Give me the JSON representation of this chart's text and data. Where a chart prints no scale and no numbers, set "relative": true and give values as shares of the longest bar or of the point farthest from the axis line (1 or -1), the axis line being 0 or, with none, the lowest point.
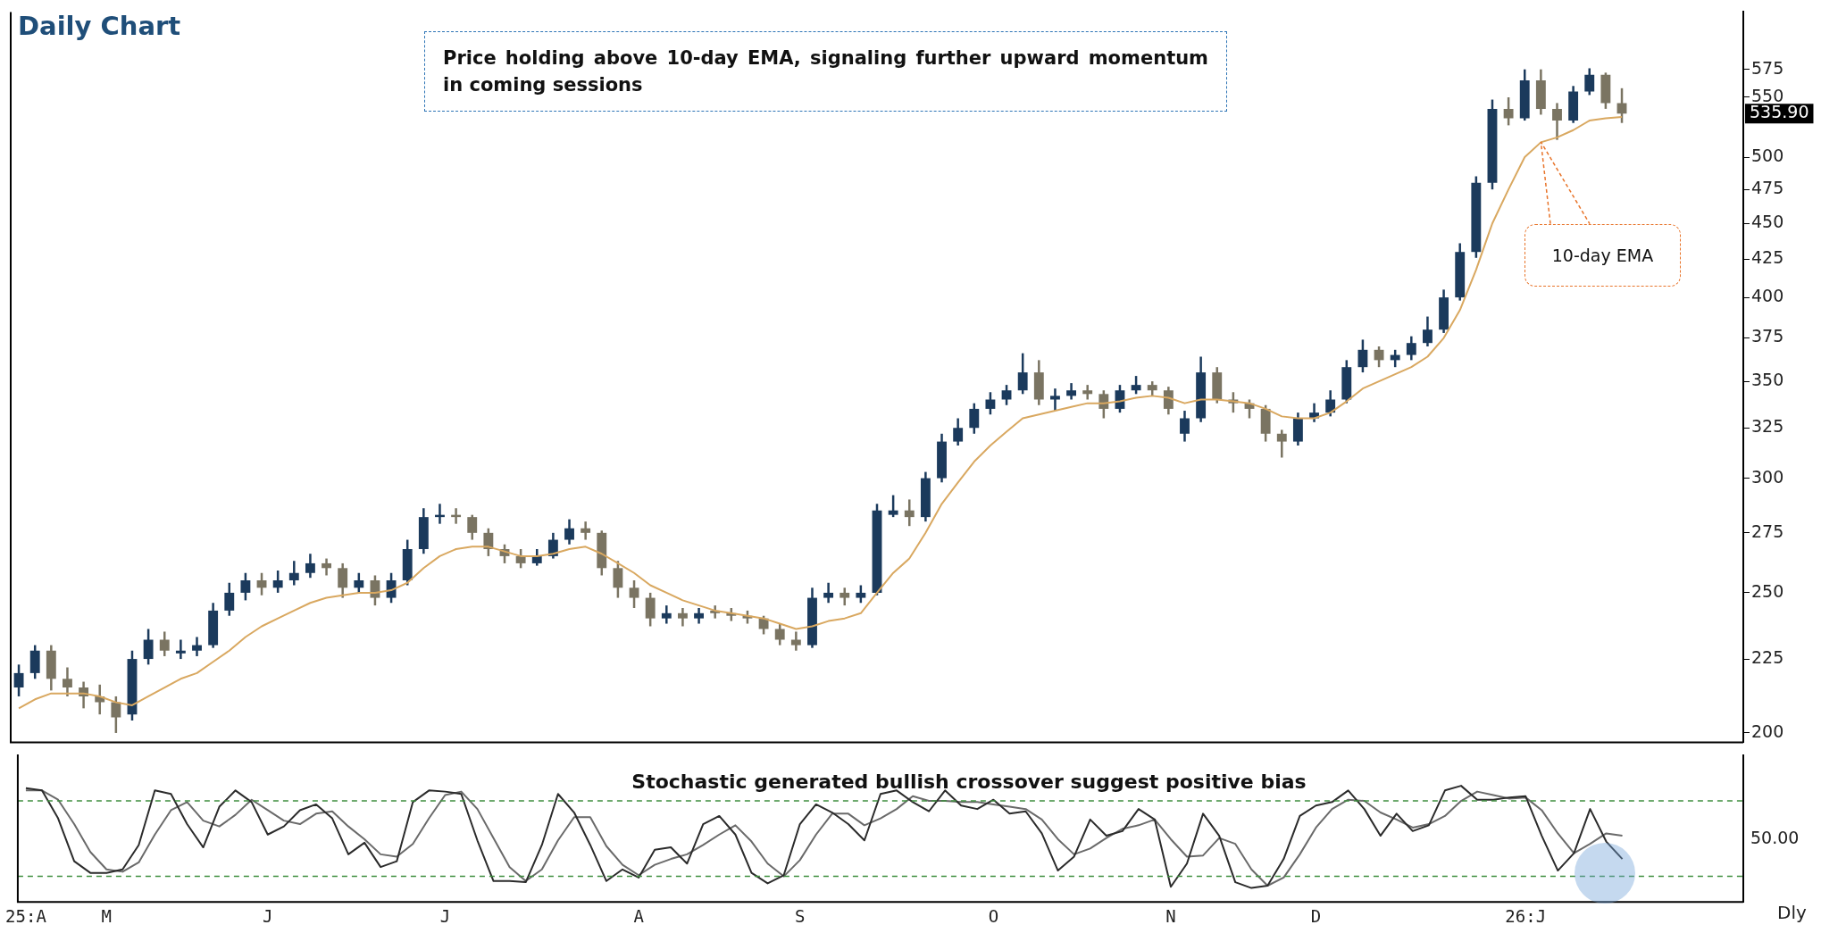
{
  "chart_data": [
    {
      "type": "candlestick",
      "title": "Daily Chart",
      "log": "y",
      "tick_labels": "y",
      "ylim": [
        197,
        630
      ],
      "yticks": [
        200,
        225,
        250,
        275,
        300,
        325,
        350,
        375,
        400,
        425,
        450,
        475,
        500,
        550,
        575
      ],
      "categories": [
        null,
        null,
        null,
        null,
        null,
        null,
        null,
        null,
        null,
        null,
        null,
        null,
        null,
        null,
        null,
        null,
        null,
        null,
        null,
        null,
        null,
        null,
        null,
        null,
        null,
        null,
        null,
        null,
        null,
        null,
        null,
        null,
        null,
        null,
        null,
        null,
        null,
        null,
        null,
        null,
        null,
        null,
        null,
        null,
        null,
        null,
        null,
        null,
        null,
        null,
        null,
        null,
        null,
        null,
        null,
        null,
        null,
        null,
        null,
        null,
        null,
        null,
        null,
        null,
        null,
        null,
        null,
        null,
        null,
        null,
        null,
        null,
        null,
        null,
        null,
        null,
        null,
        null,
        null,
        null,
        null,
        null,
        null,
        null,
        null,
        null,
        null,
        null,
        null,
        null,
        null,
        null,
        null,
        null,
        null,
        null,
        null,
        null,
        null,
        null
      ],
      "ohlc": [
        [
          215,
          223,
          212,
          220
        ],
        [
          220,
          230,
          218,
          228
        ],
        [
          228,
          230,
          214,
          218
        ],
        [
          218,
          222,
          212,
          215
        ],
        [
          215,
          217,
          208,
          212
        ],
        [
          212,
          216,
          206,
          210
        ],
        [
          210,
          212,
          200,
          205
        ],
        [
          206,
          228,
          204,
          225
        ],
        [
          225,
          236,
          223,
          232
        ],
        [
          232,
          235,
          226,
          228
        ],
        [
          227,
          232,
          225,
          228
        ],
        [
          228,
          233,
          226,
          230
        ],
        [
          230,
          246,
          229,
          243
        ],
        [
          243,
          254,
          241,
          250
        ],
        [
          250,
          258,
          247,
          255
        ],
        [
          255,
          258,
          249,
          252
        ],
        [
          252,
          259,
          250,
          255
        ],
        [
          255,
          263,
          253,
          258
        ],
        [
          258,
          266,
          256,
          262
        ],
        [
          262,
          264,
          257,
          260
        ],
        [
          260,
          262,
          248,
          252
        ],
        [
          252,
          258,
          250,
          255
        ],
        [
          255,
          257,
          245,
          248
        ],
        [
          248,
          258,
          246,
          255
        ],
        [
          255,
          272,
          253,
          268
        ],
        [
          268,
          286,
          266,
          282
        ],
        [
          282,
          288,
          279,
          283
        ],
        [
          283,
          286,
          279,
          282
        ],
        [
          282,
          283,
          272,
          275
        ],
        [
          275,
          277,
          265,
          268
        ],
        [
          268,
          270,
          262,
          265
        ],
        [
          265,
          268,
          260,
          262
        ],
        [
          262,
          268,
          261,
          265
        ],
        [
          265,
          275,
          264,
          272
        ],
        [
          272,
          281,
          270,
          277
        ],
        [
          277,
          280,
          272,
          275
        ],
        [
          275,
          276,
          257,
          260
        ],
        [
          260,
          263,
          248,
          252
        ],
        [
          252,
          255,
          244,
          248
        ],
        [
          248,
          250,
          237,
          240
        ],
        [
          240,
          245,
          238,
          242
        ],
        [
          242,
          244,
          237,
          240
        ],
        [
          240,
          244,
          238,
          242
        ],
        [
          243,
          245,
          240,
          242
        ],
        [
          242,
          244,
          239,
          241
        ],
        [
          241,
          243,
          238,
          240
        ],
        [
          240,
          241,
          234,
          236
        ],
        [
          236,
          238,
          230,
          232
        ],
        [
          232,
          235,
          228,
          230
        ],
        [
          230,
          252,
          229,
          248
        ],
        [
          248,
          254,
          246,
          250
        ],
        [
          250,
          252,
          245,
          248
        ],
        [
          248,
          253,
          246,
          250
        ],
        [
          250,
          288,
          249,
          285
        ],
        [
          283,
          292,
          282,
          285
        ],
        [
          285,
          290,
          278,
          282
        ],
        [
          282,
          303,
          280,
          300
        ],
        [
          300,
          322,
          298,
          318
        ],
        [
          318,
          330,
          316,
          325
        ],
        [
          325,
          338,
          322,
          335
        ],
        [
          335,
          344,
          332,
          340
        ],
        [
          340,
          348,
          337,
          345
        ],
        [
          345,
          366,
          343,
          355
        ],
        [
          355,
          362,
          337,
          340
        ],
        [
          340,
          346,
          334,
          342
        ],
        [
          342,
          349,
          340,
          345
        ],
        [
          345,
          348,
          340,
          343
        ],
        [
          343,
          345,
          330,
          335
        ],
        [
          335,
          348,
          333,
          345
        ],
        [
          345,
          353,
          343,
          348
        ],
        [
          348,
          350,
          342,
          345
        ],
        [
          345,
          347,
          332,
          335
        ],
        [
          322,
          334,
          318,
          330
        ],
        [
          330,
          364,
          328,
          355
        ],
        [
          355,
          358,
          338,
          340
        ],
        [
          340,
          344,
          333,
          338
        ],
        [
          338,
          340,
          330,
          335
        ],
        [
          335,
          337,
          318,
          322
        ],
        [
          322,
          324,
          310,
          318
        ],
        [
          318,
          333,
          316,
          330
        ],
        [
          330,
          338,
          328,
          333
        ],
        [
          333,
          345,
          331,
          340
        ],
        [
          340,
          362,
          338,
          358
        ],
        [
          358,
          374,
          355,
          368
        ],
        [
          368,
          370,
          358,
          362
        ],
        [
          362,
          368,
          358,
          365
        ],
        [
          365,
          376,
          362,
          372
        ],
        [
          372,
          388,
          370,
          380
        ],
        [
          380,
          405,
          378,
          400
        ],
        [
          400,
          436,
          398,
          430
        ],
        [
          430,
          485,
          426,
          480
        ],
        [
          480,
          548,
          475,
          540
        ],
        [
          540,
          550,
          526,
          532
        ],
        [
          532,
          575,
          530,
          565
        ],
        [
          565,
          575,
          535,
          540
        ],
        [
          540,
          545,
          514,
          530
        ],
        [
          530,
          560,
          528,
          555
        ],
        [
          555,
          576,
          552,
          570
        ],
        [
          570,
          572,
          540,
          545
        ],
        [
          545,
          558,
          528,
          535.9
        ]
      ],
      "colors": [
        "#1b3a5c",
        "#1b3a5c",
        "#7a7462",
        "#7a7462",
        "#7a7462",
        "#7a7462",
        "#7a7462",
        "#1b3a5c",
        "#1b3a5c",
        "#7a7462",
        "#1b3a5c",
        "#1b3a5c",
        "#1b3a5c",
        "#1b3a5c",
        "#1b3a5c",
        "#7a7462",
        "#1b3a5c",
        "#1b3a5c",
        "#1b3a5c",
        "#7a7462",
        "#7a7462",
        "#1b3a5c",
        "#7a7462",
        "#1b3a5c",
        "#1b3a5c",
        "#1b3a5c",
        "#1b3a5c",
        "#7a7462",
        "#7a7462",
        "#7a7462",
        "#7a7462",
        "#7a7462",
        "#1b3a5c",
        "#1b3a5c",
        "#1b3a5c",
        "#7a7462",
        "#7a7462",
        "#7a7462",
        "#7a7462",
        "#7a7462",
        "#1b3a5c",
        "#7a7462",
        "#1b3a5c",
        "#7a7462",
        "#7a7462",
        "#7a7462",
        "#7a7462",
        "#7a7462",
        "#7a7462",
        "#1b3a5c",
        "#1b3a5c",
        "#7a7462",
        "#1b3a5c",
        "#1b3a5c",
        "#1b3a5c",
        "#7a7462",
        "#1b3a5c",
        "#1b3a5c",
        "#1b3a5c",
        "#1b3a5c",
        "#1b3a5c",
        "#1b3a5c",
        "#1b3a5c",
        "#7a7462",
        "#1b3a5c",
        "#1b3a5c",
        "#7a7462",
        "#7a7462",
        "#1b3a5c",
        "#1b3a5c",
        "#7a7462",
        "#7a7462",
        "#1b3a5c",
        "#1b3a5c",
        "#7a7462",
        "#7a7462",
        "#7a7462",
        "#7a7462",
        "#7a7462",
        "#1b3a5c",
        "#1b3a5c",
        "#1b3a5c",
        "#1b3a5c",
        "#1b3a5c",
        "#7a7462",
        "#1b3a5c",
        "#1b3a5c",
        "#1b3a5c",
        "#1b3a5c",
        "#1b3a5c",
        "#1b3a5c",
        "#1b3a5c",
        "#7a7462",
        "#1b3a5c",
        "#7a7462",
        "#7a7462",
        "#1b3a5c",
        "#1b3a5c",
        "#7a7462",
        "#7a7462"
      ],
      "series": [
        {
          "type": "line",
          "name": "10-day EMA",
          "color": "#d9a860",
          "values": [
            208,
            211,
            213,
            213,
            213,
            212,
            210,
            209,
            212,
            215,
            218,
            220,
            224,
            228,
            233,
            237,
            240,
            243,
            246,
            248,
            249,
            250,
            250,
            251,
            254,
            260,
            265,
            268,
            269,
            269,
            267,
            265,
            265,
            266,
            268,
            269,
            266,
            262,
            258,
            253,
            250,
            247,
            245,
            243,
            242,
            241,
            240,
            238,
            236,
            237,
            239,
            240,
            242,
            250,
            258,
            264,
            275,
            288,
            298,
            308,
            316,
            323,
            330,
            332,
            334,
            336,
            338,
            338,
            339,
            341,
            342,
            341,
            338,
            340,
            340,
            339,
            338,
            335,
            331,
            330,
            330,
            333,
            339,
            346,
            350,
            354,
            358,
            364,
            375,
            392,
            418,
            450,
            475,
            500,
            512,
            516,
            522,
            530,
            532,
            533
          ]
        }
      ],
      "annotations": [
        "Price holding above 10-day EMA, signaling further upward momentum in coming sessions",
        "535.90"
      ]
    },
    {
      "type": "line",
      "title": "Stochastic generated bullish crossover suggest positive bias",
      "relative": true,
      "categories": [
        "25:A",
        null,
        null,
        null,
        null,
        "M",
        null,
        null,
        null,
        null,
        null,
        null,
        null,
        null,
        null,
        "J",
        null,
        null,
        null,
        null,
        null,
        null,
        null,
        null,
        null,
        null,
        "J",
        null,
        null,
        null,
        null,
        null,
        null,
        null,
        null,
        null,
        null,
        null,
        "A",
        null,
        null,
        null,
        null,
        null,
        null,
        null,
        null,
        null,
        "S",
        null,
        null,
        null,
        null,
        null,
        null,
        null,
        null,
        null,
        null,
        null,
        "O",
        null,
        null,
        null,
        null,
        null,
        null,
        null,
        null,
        null,
        null,
        "N",
        null,
        null,
        null,
        null,
        null,
        null,
        null,
        null,
        "D",
        null,
        null,
        null,
        null,
        null,
        null,
        null,
        null,
        null,
        null,
        null,
        null,
        "26:J",
        null,
        null,
        null,
        null,
        null,
        null
      ],
      "series": [
        {
          "color": "#2b2b2b",
          "values": [
            0.98,
            0.96,
            0.72,
            0.35,
            0.25,
            0.25,
            0.28,
            0.49,
            0.96,
            0.93,
            0.67,
            0.47,
            0.82,
            0.96,
            0.86,
            0.58,
            0.65,
            0.79,
            0.84,
            0.72,
            0.41,
            0.51,
            0.3,
            0.35,
            0.86,
            0.96,
            0.95,
            0.93,
            0.53,
            0.18,
            0.18,
            0.17,
            0.49,
            0.93,
            0.77,
            0.49,
            0.18,
            0.28,
            0.21,
            0.45,
            0.47,
            0.33,
            0.67,
            0.74,
            0.58,
            0.25,
            0.16,
            0.23,
            0.67,
            0.84,
            0.77,
            0.67,
            0.53,
            0.93,
            0.96,
            0.86,
            0.78,
            0.96,
            0.83,
            0.8,
            0.88,
            0.76,
            0.78,
            0.59,
            0.27,
            0.39,
            0.71,
            0.57,
            0.61,
            0.8,
            0.71,
            0.13,
            0.33,
            0.76,
            0.57,
            0.17,
            0.12,
            0.14,
            0.37,
            0.74,
            0.83,
            0.86,
            0.96,
            0.8,
            0.57,
            0.76,
            0.61,
            0.66,
            0.96,
            1,
            0.88,
            0.88,
            0.9,
            0.91,
            0.57,
            0.27,
            0.42,
            0.8,
            0.52,
            0.37
          ]
        },
        {
          "color": "#6a6a6a",
          "values": [
            0.96,
            0.96,
            0.88,
            0.67,
            0.43,
            0.28,
            0.26,
            0.34,
            0.58,
            0.79,
            0.86,
            0.7,
            0.65,
            0.75,
            0.88,
            0.79,
            0.7,
            0.67,
            0.76,
            0.78,
            0.65,
            0.54,
            0.41,
            0.39,
            0.5,
            0.72,
            0.92,
            0.95,
            0.8,
            0.55,
            0.3,
            0.18,
            0.28,
            0.53,
            0.73,
            0.73,
            0.48,
            0.32,
            0.23,
            0.32,
            0.37,
            0.41,
            0.49,
            0.58,
            0.66,
            0.52,
            0.33,
            0.22,
            0.36,
            0.58,
            0.76,
            0.76,
            0.66,
            0.72,
            0.8,
            0.91,
            0.87,
            0.87,
            0.86,
            0.86,
            0.84,
            0.82,
            0.8,
            0.71,
            0.54,
            0.41,
            0.46,
            0.55,
            0.63,
            0.66,
            0.71,
            0.54,
            0.39,
            0.4,
            0.55,
            0.5,
            0.28,
            0.14,
            0.21,
            0.41,
            0.64,
            0.8,
            0.88,
            0.87,
            0.77,
            0.71,
            0.64,
            0.67,
            0.74,
            0.87,
            0.95,
            0.92,
            0.89,
            0.9,
            0.79,
            0.59,
            0.42,
            0.5,
            0.59,
            0.57
          ]
        }
      ],
      "ref_lines": [
        {
          "axis": "y",
          "value": 0.87,
          "color": "#3f8f3f",
          "line_style": "dashed"
        },
        {
          "axis": "y",
          "value": 0.22,
          "color": "#3f8f3f",
          "line_style": "dashed"
        }
      ],
      "annotations": [
        "50.00",
        "Dly"
      ]
    }
  ]
}
